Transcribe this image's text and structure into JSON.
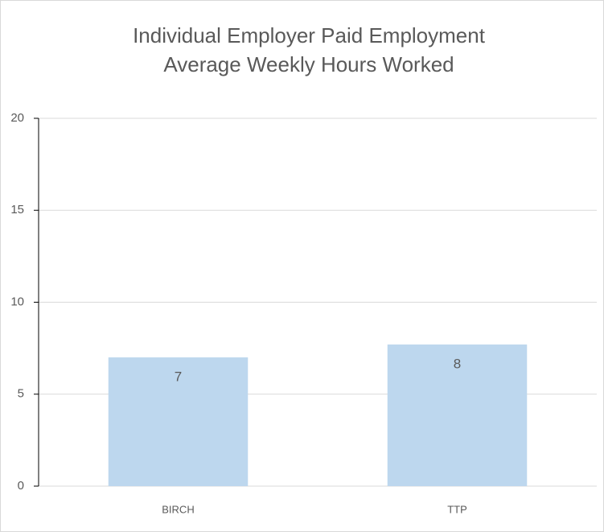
{
  "chart_data": {
    "type": "bar",
    "title": [
      "Individual Employer Paid Employment",
      "Average Weekly Hours Worked"
    ],
    "categories": [
      "BIRCH",
      "TTP"
    ],
    "values": [
      7,
      7.7
    ],
    "value_labels": [
      "7",
      "8"
    ],
    "color": "#bdd7ee",
    "ylim": [
      0,
      20
    ],
    "yticks": [
      0,
      5,
      10,
      15,
      20
    ],
    "grid": true
  }
}
